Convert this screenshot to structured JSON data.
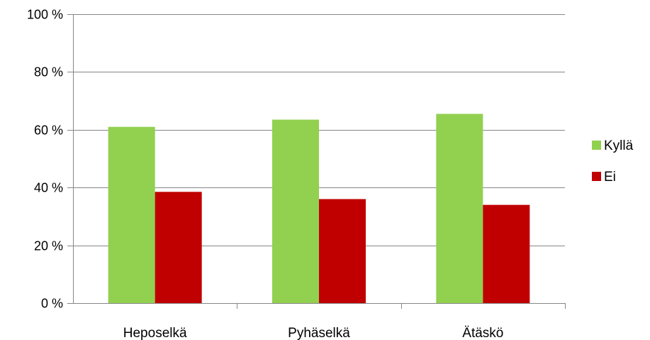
{
  "chart_data": {
    "type": "bar",
    "title": "",
    "xlabel": "",
    "ylabel": "",
    "categories": [
      "Heposelkä",
      "Pyhäselkä",
      "Ätäskö"
    ],
    "series": [
      {
        "name": "Kyllä",
        "color": "#92d050",
        "values": [
          61,
          63.5,
          65.5
        ]
      },
      {
        "name": "Ei",
        "color": "#c00000",
        "values": [
          38.5,
          36,
          34
        ]
      }
    ],
    "ylim": [
      0,
      100
    ],
    "yticks": [
      0,
      20,
      40,
      60,
      80,
      100
    ],
    "ytick_labels": [
      "0 %",
      "20 %",
      "40 %",
      "60 %",
      "80 %",
      "100 %"
    ],
    "grid": true,
    "legend_position": "right",
    "colors": {
      "gridline": "#868686",
      "axis": "#868686"
    }
  }
}
